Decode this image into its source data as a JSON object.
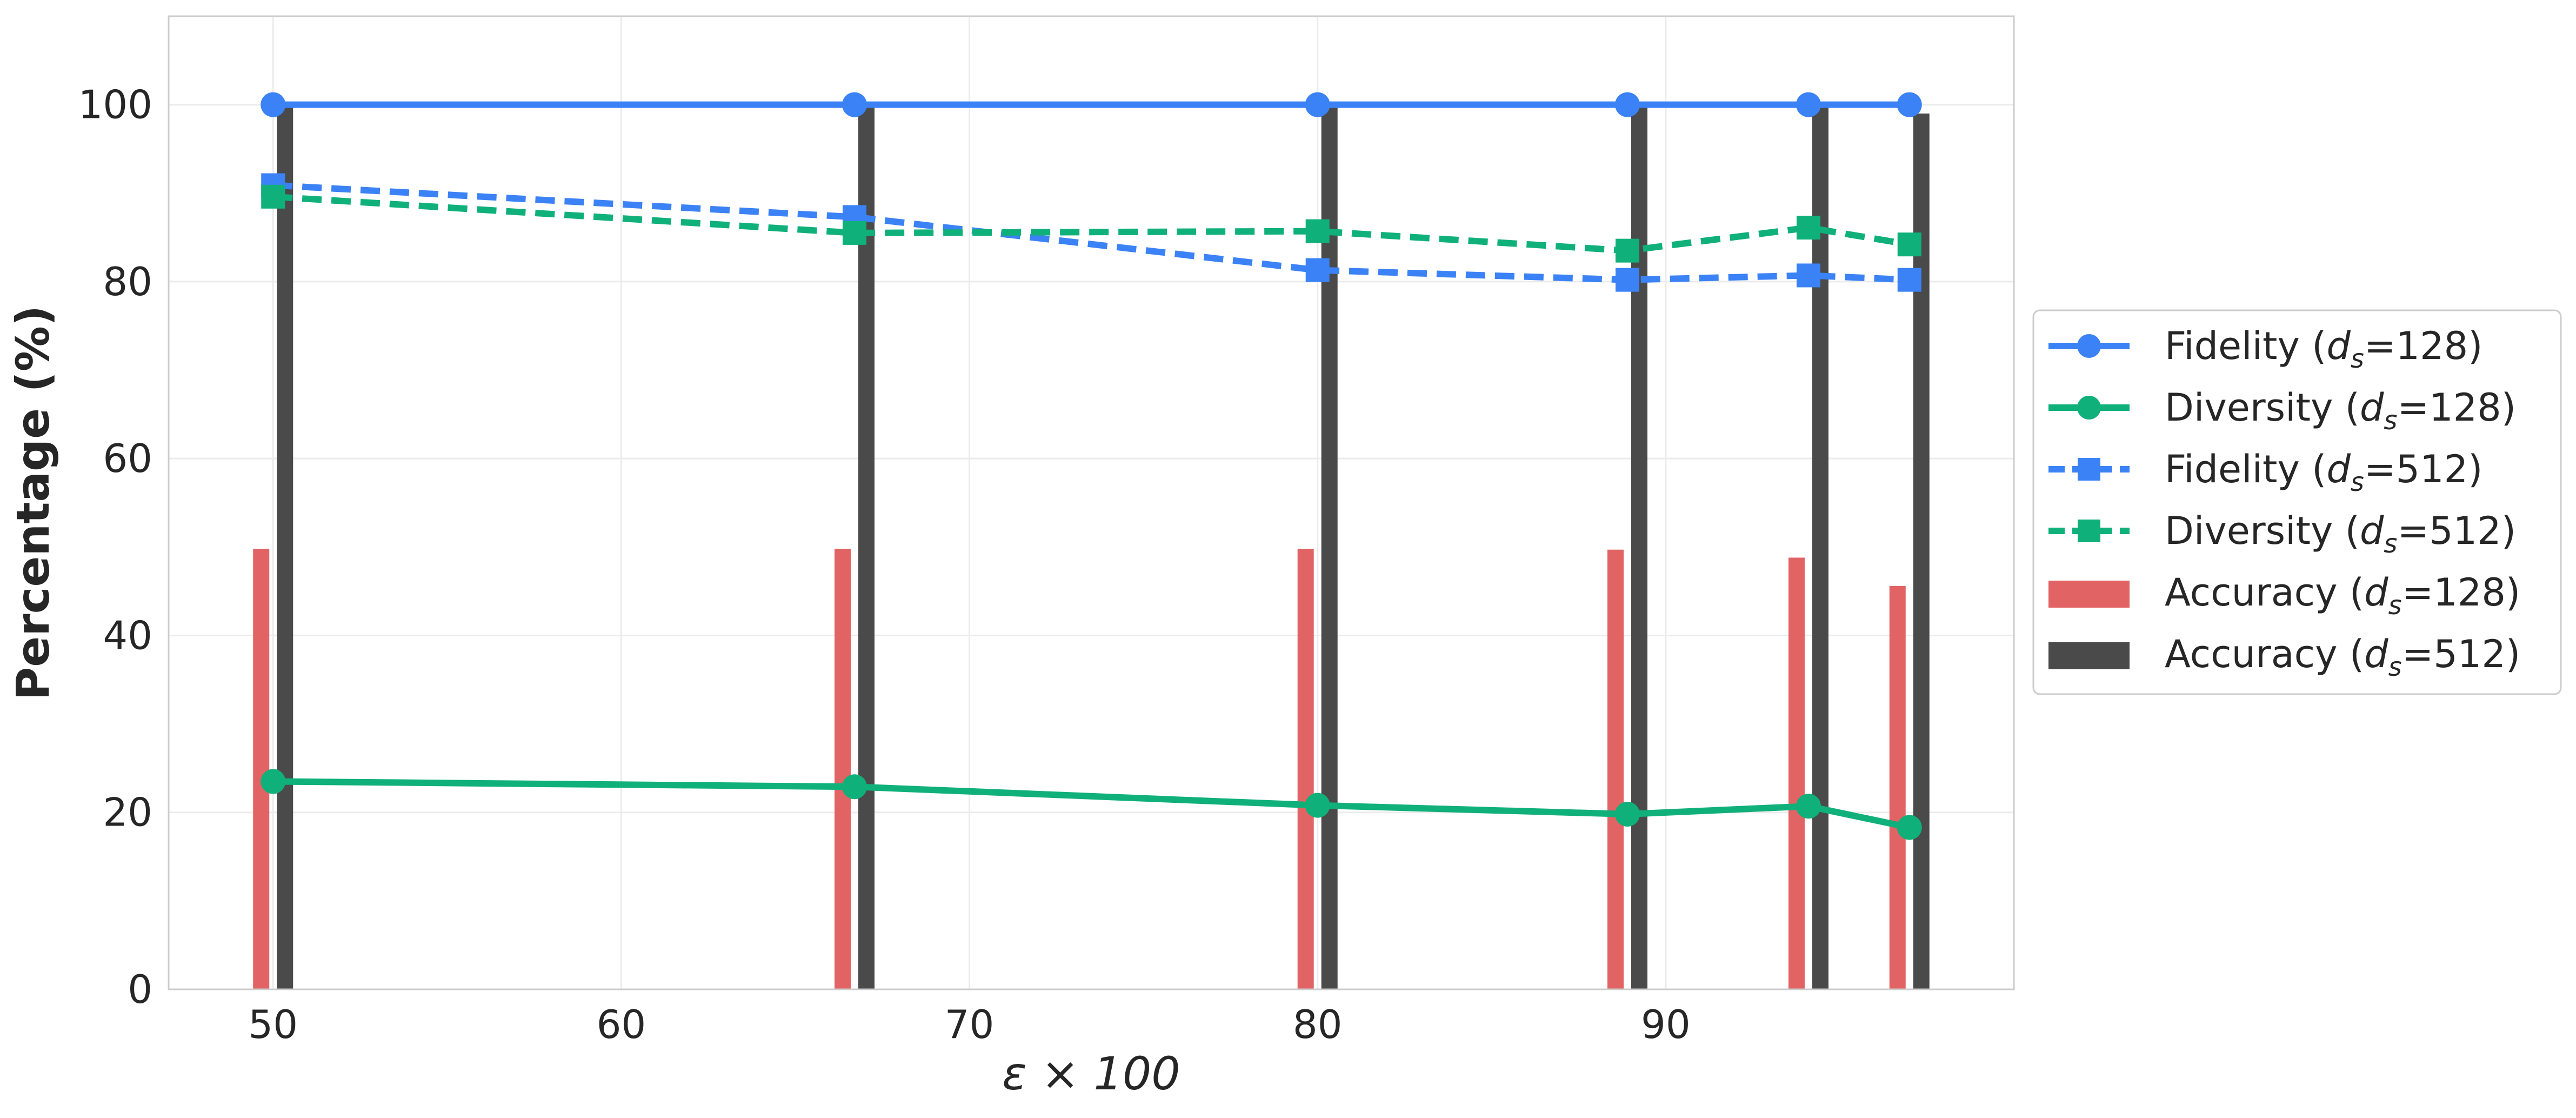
{
  "chart_data": {
    "type": "line",
    "title": "",
    "xlabel": "ε × 100",
    "ylabel": "Percentage (%)",
    "xlim": [
      47,
      100
    ],
    "ylim": [
      0,
      110
    ],
    "xticks": [
      50,
      60,
      70,
      80,
      90
    ],
    "yticks": [
      0,
      20,
      40,
      60,
      80,
      100
    ],
    "grid": true,
    "legend_position": "outside-right",
    "x": [
      50,
      66.7,
      80,
      88.9,
      94.1,
      97
    ],
    "series": [
      {
        "name": "Fidelity (d_s=128)",
        "legend_main": "Fidelity (",
        "legend_var": "d",
        "legend_sub": "s",
        "legend_tail": "=128)",
        "kind": "line",
        "marker": "circle",
        "dash": "solid",
        "color": "#3B82F6",
        "values": [
          100,
          100,
          100,
          100,
          100,
          100
        ]
      },
      {
        "name": "Diversity (d_s=128)",
        "legend_main": "Diversity (",
        "legend_var": "d",
        "legend_sub": "s",
        "legend_tail": "=128)",
        "kind": "line",
        "marker": "circle",
        "dash": "solid",
        "color": "#10B07B",
        "values": [
          23.5,
          22.9,
          20.8,
          19.8,
          20.7,
          18.3
        ]
      },
      {
        "name": "Fidelity (d_s=512)",
        "legend_main": "Fidelity (",
        "legend_var": "d",
        "legend_sub": "s",
        "legend_tail": "=512)",
        "kind": "line",
        "marker": "square",
        "dash": "dashed",
        "color": "#3B82F6",
        "values": [
          90.9,
          87.3,
          81.3,
          80.2,
          80.7,
          80.2
        ]
      },
      {
        "name": "Diversity (d_s=512)",
        "legend_main": "Diversity (",
        "legend_var": "d",
        "legend_sub": "s",
        "legend_tail": "=512)",
        "kind": "line",
        "marker": "square",
        "dash": "dashed",
        "color": "#10B07B",
        "values": [
          89.6,
          85.5,
          85.7,
          83.5,
          86.1,
          84.2
        ]
      },
      {
        "name": "Accuracy (d_s=128)",
        "legend_main": "Accuracy (",
        "legend_var": "d",
        "legend_sub": "s",
        "legend_tail": "=128)",
        "kind": "bar",
        "color": "#E26363",
        "values": [
          49.8,
          49.8,
          49.8,
          49.7,
          48.8,
          45.6
        ]
      },
      {
        "name": "Accuracy (d_s=512)",
        "legend_main": "Accuracy (",
        "legend_var": "d",
        "legend_sub": "s",
        "legend_tail": "=512)",
        "kind": "bar",
        "color": "#4A4A4A",
        "values": [
          100,
          100,
          100,
          100,
          100,
          99
        ]
      }
    ]
  }
}
